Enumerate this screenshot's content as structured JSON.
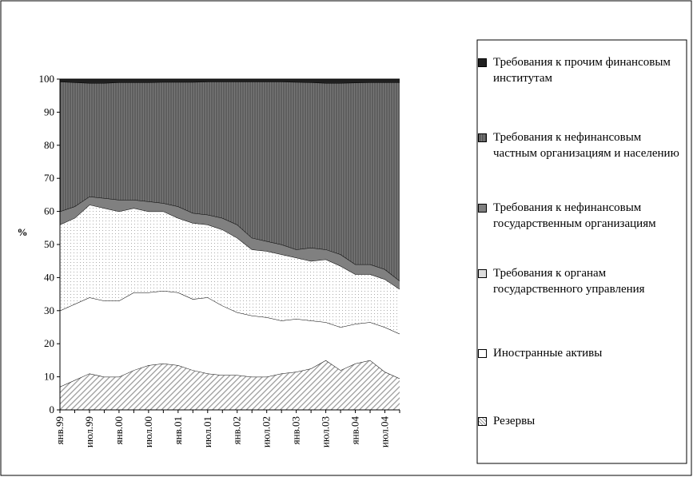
{
  "chart_data": {
    "type": "stacked-area",
    "y_label": "%",
    "categories": [
      "янв.99",
      null,
      "июл.99",
      null,
      "янв.00",
      null,
      "июл.00",
      null,
      "янв.01",
      null,
      "июл.01",
      null,
      "янв.02",
      null,
      "июл.02",
      null,
      "янв.03",
      null,
      "июл.03",
      null,
      "янв.04",
      null,
      "июл.04",
      null
    ],
    "ylim": [
      0,
      100
    ],
    "yticks": [
      0,
      10,
      20,
      30,
      40,
      50,
      60,
      70,
      80,
      90,
      100
    ],
    "series": [
      {
        "name": "Резервы",
        "color": "#a0a0a0",
        "pattern": "diagonal",
        "values": [
          7,
          9,
          11,
          10,
          10,
          12,
          13.5,
          14,
          13.5,
          12,
          11,
          10.5,
          10.5,
          10,
          10,
          11,
          11.5,
          12.5,
          15,
          12,
          14,
          15,
          11.5,
          9.5
        ]
      },
      {
        "name": "Иностранные активы",
        "color": "#ffffff",
        "pattern": "none",
        "values": [
          23,
          23,
          23,
          23,
          23,
          23.5,
          22,
          22,
          22,
          21.5,
          23,
          21,
          19,
          18.5,
          18,
          16,
          16,
          14.5,
          11.5,
          13,
          12,
          11.5,
          13.5,
          13.5
        ]
      },
      {
        "name": "Требования к органам государственного управления",
        "color": "#c8c8c8",
        "pattern": "dots",
        "values": [
          26,
          26,
          28,
          28,
          27,
          25.5,
          24.5,
          24,
          22.5,
          23,
          22,
          23,
          22.5,
          20,
          20,
          20,
          18.5,
          18,
          19,
          18.5,
          15,
          14.5,
          14.5,
          13.5
        ]
      },
      {
        "name": "Требования к нефинансовым государственным организациям",
        "color": "#808080",
        "pattern": "none",
        "values": [
          4,
          3.5,
          2.5,
          3,
          3.5,
          2.5,
          3,
          2.5,
          3.5,
          3,
          3,
          3.5,
          4,
          3.5,
          3,
          3,
          2.5,
          4,
          3,
          3.5,
          3,
          3,
          3,
          2.5
        ]
      },
      {
        "name": "Требования к нефинансовым частным организациям и населению",
        "color": "#606060",
        "pattern": "vertical",
        "values": [
          39.2,
          37.5,
          34.3,
          34.8,
          35.5,
          35.5,
          36,
          36.6,
          37.6,
          39.6,
          40.2,
          41.2,
          43.2,
          47.2,
          48.2,
          49.2,
          50.6,
          50,
          50.3,
          51.8,
          54.9,
          55,
          56.5,
          60
        ]
      },
      {
        "name": "Требования к прочим финансовым институтам",
        "color": "#202020",
        "pattern": "none",
        "values": [
          0.8,
          1,
          1.2,
          1.2,
          1,
          1,
          1,
          0.9,
          0.9,
          0.9,
          0.8,
          0.8,
          0.8,
          0.8,
          0.8,
          0.8,
          0.9,
          1,
          1.2,
          1.2,
          1.1,
          1,
          1,
          1
        ]
      }
    ]
  }
}
